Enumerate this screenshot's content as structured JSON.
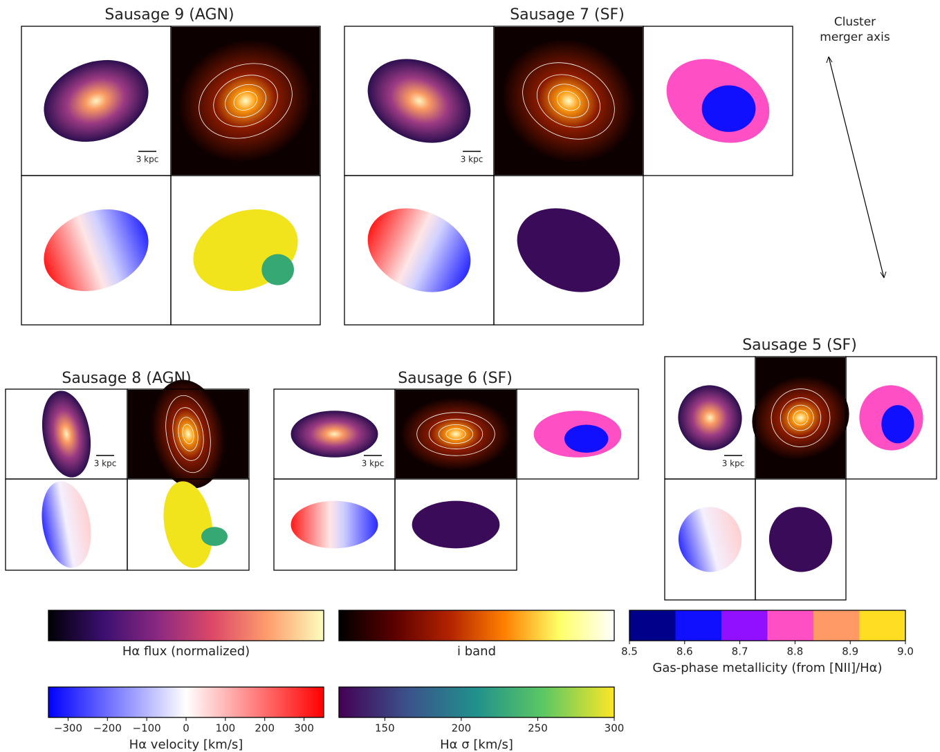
{
  "figure": {
    "galaxies": [
      {
        "title": "Sausage 9 (AGN)",
        "scale_label": "3 kpc"
      },
      {
        "title": "Sausage 7 (SF)",
        "scale_label": "3 kpc"
      },
      {
        "title": "Sausage 8 (AGN)",
        "scale_label": "3 kpc"
      },
      {
        "title": "Sausage 6 (SF)",
        "scale_label": "3 kpc"
      },
      {
        "title": "Sausage 5 (SF)",
        "scale_label": "3 kpc"
      }
    ],
    "annotation": [
      "Cluster",
      "merger axis"
    ],
    "colorbars": [
      {
        "label": "Hα flux (normalized)",
        "colors": [
          "#000004",
          "#3b0f70",
          "#8c2981",
          "#de4968",
          "#fe9f6d",
          "#fcfdbf"
        ]
      },
      {
        "label": "i band",
        "colors": [
          "#000000",
          "#5a0000",
          "#b22200",
          "#ff7f00",
          "#ffff66",
          "#ffffff"
        ]
      },
      {
        "label": "Gas-phase metallicity (from [NII]/Hα)",
        "discrete": true,
        "colors": [
          "#00008b",
          "#1010ff",
          "#9010ff",
          "#ff4fc4",
          "#ff9966",
          "#ffdd22"
        ],
        "lim": [
          8.5,
          9.0
        ],
        "ticks": [
          8.5,
          8.6,
          8.7,
          8.8,
          8.9,
          {
            "value": 9.0,
            "label": "9.0"
          }
        ]
      },
      {
        "label": "Hα velocity [km/s]",
        "colors": [
          "#0000ff",
          "#ffffff",
          "#ff0000"
        ],
        "lim": [
          -350,
          350
        ],
        "ticks": [
          {
            "value": -300,
            "label": "−300"
          },
          {
            "value": -200,
            "label": "−200"
          },
          {
            "value": -100,
            "label": "−100"
          },
          0,
          100,
          200,
          300
        ]
      },
      {
        "label": "Hα σ [km/s]",
        "colors": [
          "#440154",
          "#3b528b",
          "#21918c",
          "#5ec962",
          "#fde725"
        ],
        "lim": [
          120,
          300
        ],
        "ticks": [
          150,
          200,
          250,
          300
        ]
      }
    ]
  }
}
